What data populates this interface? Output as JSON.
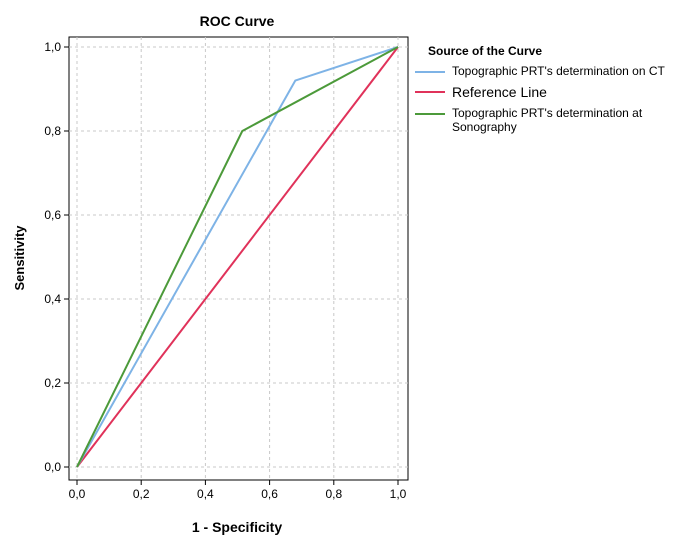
{
  "chart_data": {
    "type": "line",
    "title": "ROC Curve",
    "xlabel": "1 - Specificity",
    "ylabel": "Sensitivity",
    "xlim": [
      0,
      1
    ],
    "ylim": [
      0,
      1
    ],
    "xticks": [
      "0,0",
      "0,2",
      "0,4",
      "0,6",
      "0,8",
      "1,0"
    ],
    "yticks": [
      "0,0",
      "0,2",
      "0,4",
      "0,6",
      "0,8",
      "1,0"
    ],
    "grid": true,
    "legend": {
      "title": "Source of the Curve",
      "placement": "right"
    },
    "series": [
      {
        "name": "Topographic PRT's determination on CT",
        "color": "#7eb3e6",
        "x": [
          0,
          0.68,
          1
        ],
        "y": [
          0,
          0.92,
          1
        ]
      },
      {
        "name": "Reference Line",
        "color": "#e0325a",
        "x": [
          0,
          1
        ],
        "y": [
          0,
          1
        ]
      },
      {
        "name": "Topographic PRT's determination at Sonography",
        "color": "#4c9a3a",
        "x": [
          0,
          0.515,
          1
        ],
        "y": [
          0,
          0.8,
          1
        ]
      }
    ]
  }
}
